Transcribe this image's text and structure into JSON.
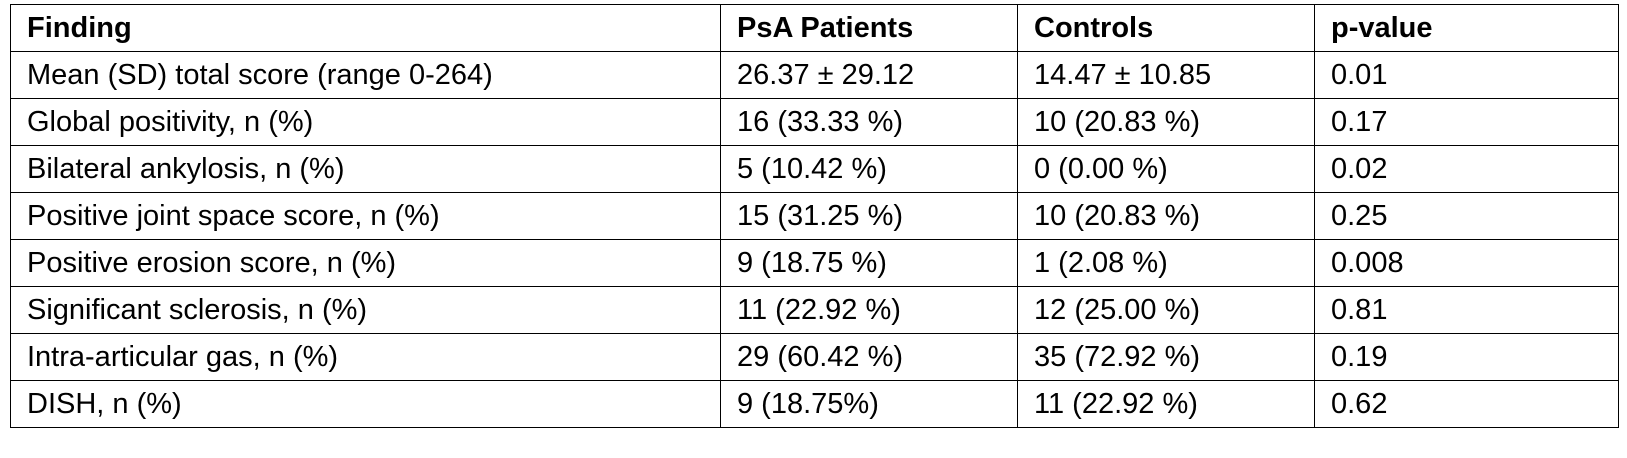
{
  "table": {
    "headers": [
      "Finding",
      "PsA Patients",
      "Controls",
      "p-value"
    ],
    "rows": [
      [
        "Mean (SD) total score (range 0-264)",
        "26.37 ± 29.12",
        "14.47 ± 10.85",
        "0.01"
      ],
      [
        "Global positivity, n (%)",
        "16 (33.33 %)",
        "10 (20.83 %)",
        "0.17"
      ],
      [
        "Bilateral ankylosis, n (%)",
        "5 (10.42 %)",
        "0 (0.00 %)",
        "0.02"
      ],
      [
        "Positive joint space score, n (%)",
        "15 (31.25 %)",
        "10 (20.83 %)",
        "0.25"
      ],
      [
        "Positive erosion score, n (%)",
        "9 (18.75 %)",
        "1 (2.08 %)",
        "0.008"
      ],
      [
        "Significant sclerosis, n (%)",
        "11 (22.92 %)",
        "12 (25.00 %)",
        "0.81"
      ],
      [
        "Intra-articular gas, n (%)",
        "29 (60.42 %)",
        "35 (72.92 %)",
        "0.19"
      ],
      [
        "DISH, n (%)",
        "9 (18.75%)",
        "11 (22.92 %)",
        "0.62"
      ]
    ]
  }
}
